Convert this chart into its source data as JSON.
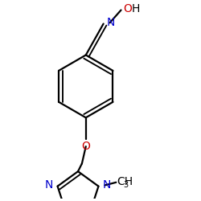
{
  "bg_color": "#ffffff",
  "bond_color": "#000000",
  "N_color": "#0000cc",
  "O_color": "#cc0000",
  "line_width": 1.6,
  "font_size": 10,
  "figsize": [
    2.5,
    2.5
  ],
  "dpi": 100,
  "xlim": [
    -0.55,
    0.85
  ],
  "ylim": [
    -1.15,
    0.85
  ]
}
